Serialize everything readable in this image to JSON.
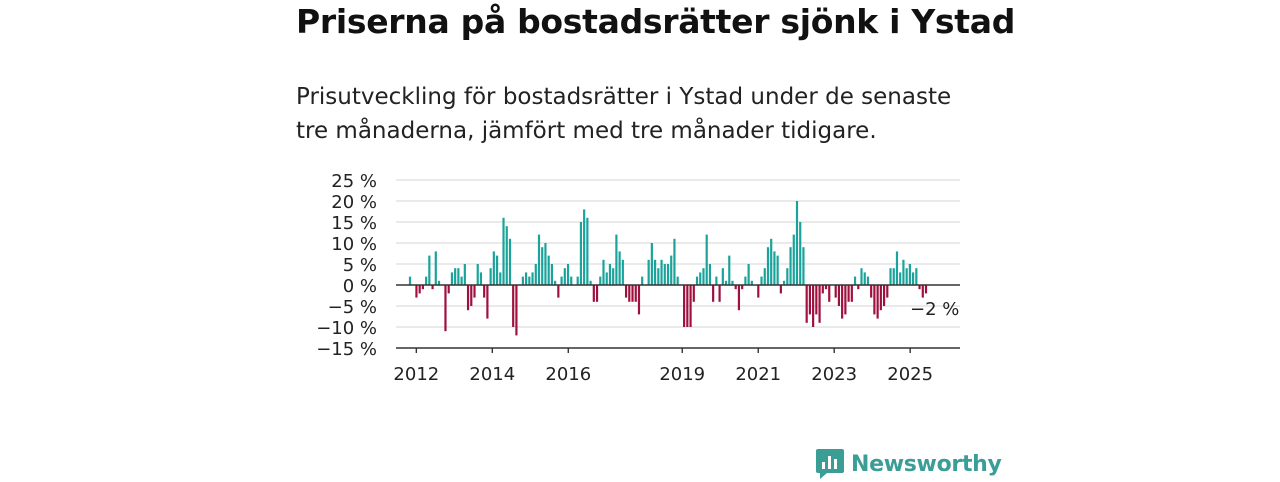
{
  "title": "Priserna på bostadsrätter sjönk i Ystad",
  "subtitle": "Prisutveckling för bostadsrätter i Ystad under de senaste tre månaderna, jämfört med tre månader tidigare.",
  "brand": {
    "name": "Newsworthy",
    "icon": "newsworthy-logo-icon",
    "color": "#3a9e97"
  },
  "colors": {
    "positive": "#1aa39a",
    "negative": "#a0103e",
    "grid": "#dddddd",
    "axis": "#333333"
  },
  "chart_data": {
    "type": "bar",
    "ylim": [
      -15,
      25
    ],
    "yticks": [
      25,
      20,
      15,
      10,
      5,
      0,
      -5,
      -10,
      -15
    ],
    "ytick_labels": [
      "25 %",
      "20 %",
      "15 %",
      "10 %",
      "5 %",
      "0 %",
      "−5 %",
      "−10 %",
      "−15 %"
    ],
    "x_start": "2011-11",
    "x_end": "2025-06",
    "xtick_labels": [
      "2012",
      "2014",
      "2016",
      "2019",
      "2021",
      "2023",
      "2025"
    ],
    "annotation": "−2 %",
    "grid": true,
    "values": [
      2,
      0,
      -3,
      -2,
      -1,
      2,
      7,
      -1,
      8,
      1,
      0,
      -11,
      -2,
      3,
      4,
      4,
      2,
      5,
      -6,
      -5,
      -3,
      5,
      3,
      -3,
      -8,
      4,
      8,
      7,
      3,
      16,
      14,
      11,
      -10,
      -12,
      0,
      2,
      3,
      2,
      3,
      5,
      12,
      9,
      10,
      7,
      5,
      1,
      -3,
      2,
      4,
      5,
      2,
      0,
      2,
      15,
      18,
      16,
      1,
      -4,
      -4,
      2,
      6,
      3,
      5,
      4,
      12,
      8,
      6,
      -3,
      -4,
      -4,
      -4,
      -7,
      2,
      0,
      6,
      10,
      6,
      4,
      6,
      5,
      5,
      7,
      11,
      2,
      0,
      -10,
      -10,
      -10,
      -4,
      2,
      3,
      4,
      12,
      5,
      -4,
      2,
      -4,
      4,
      1,
      7,
      1,
      -1,
      -6,
      -1,
      2,
      5,
      1,
      0,
      -3,
      2,
      4,
      9,
      11,
      8,
      7,
      -2,
      1,
      4,
      9,
      12,
      20,
      15,
      9,
      -9,
      -7,
      -10,
      -7,
      -9,
      -2,
      -1,
      -4,
      0,
      -3,
      -5,
      -8,
      -7,
      -4,
      -4,
      2,
      -1,
      4,
      3,
      2,
      -3,
      -7,
      -8,
      -6,
      -5,
      -3,
      4,
      4,
      8,
      3,
      6,
      4,
      5,
      3,
      4,
      -1,
      -3,
      -2
    ]
  }
}
